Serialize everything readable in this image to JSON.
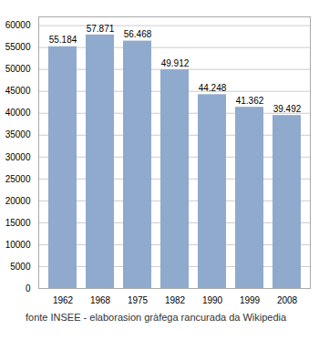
{
  "chart_data": {
    "type": "bar",
    "caption": "fonte INSEE - elaborasion gràfega rancurada da Wikipedia",
    "categories": [
      "1962",
      "1968",
      "1975",
      "1982",
      "1990",
      "1999",
      "2008"
    ],
    "values": [
      55184,
      57871,
      56468,
      49912,
      44248,
      41362,
      39492
    ],
    "value_labels": [
      "55.184",
      "57.871",
      "56.468",
      "49.912",
      "44.248",
      "41.362",
      "39.492"
    ],
    "data_labels": true,
    "color": "#8FAACC",
    "ylim": [
      0,
      62000
    ],
    "yticks": [
      0,
      5000,
      10000,
      15000,
      20000,
      25000,
      30000,
      35000,
      40000,
      45000,
      50000,
      55000,
      60000
    ],
    "grid": true
  }
}
